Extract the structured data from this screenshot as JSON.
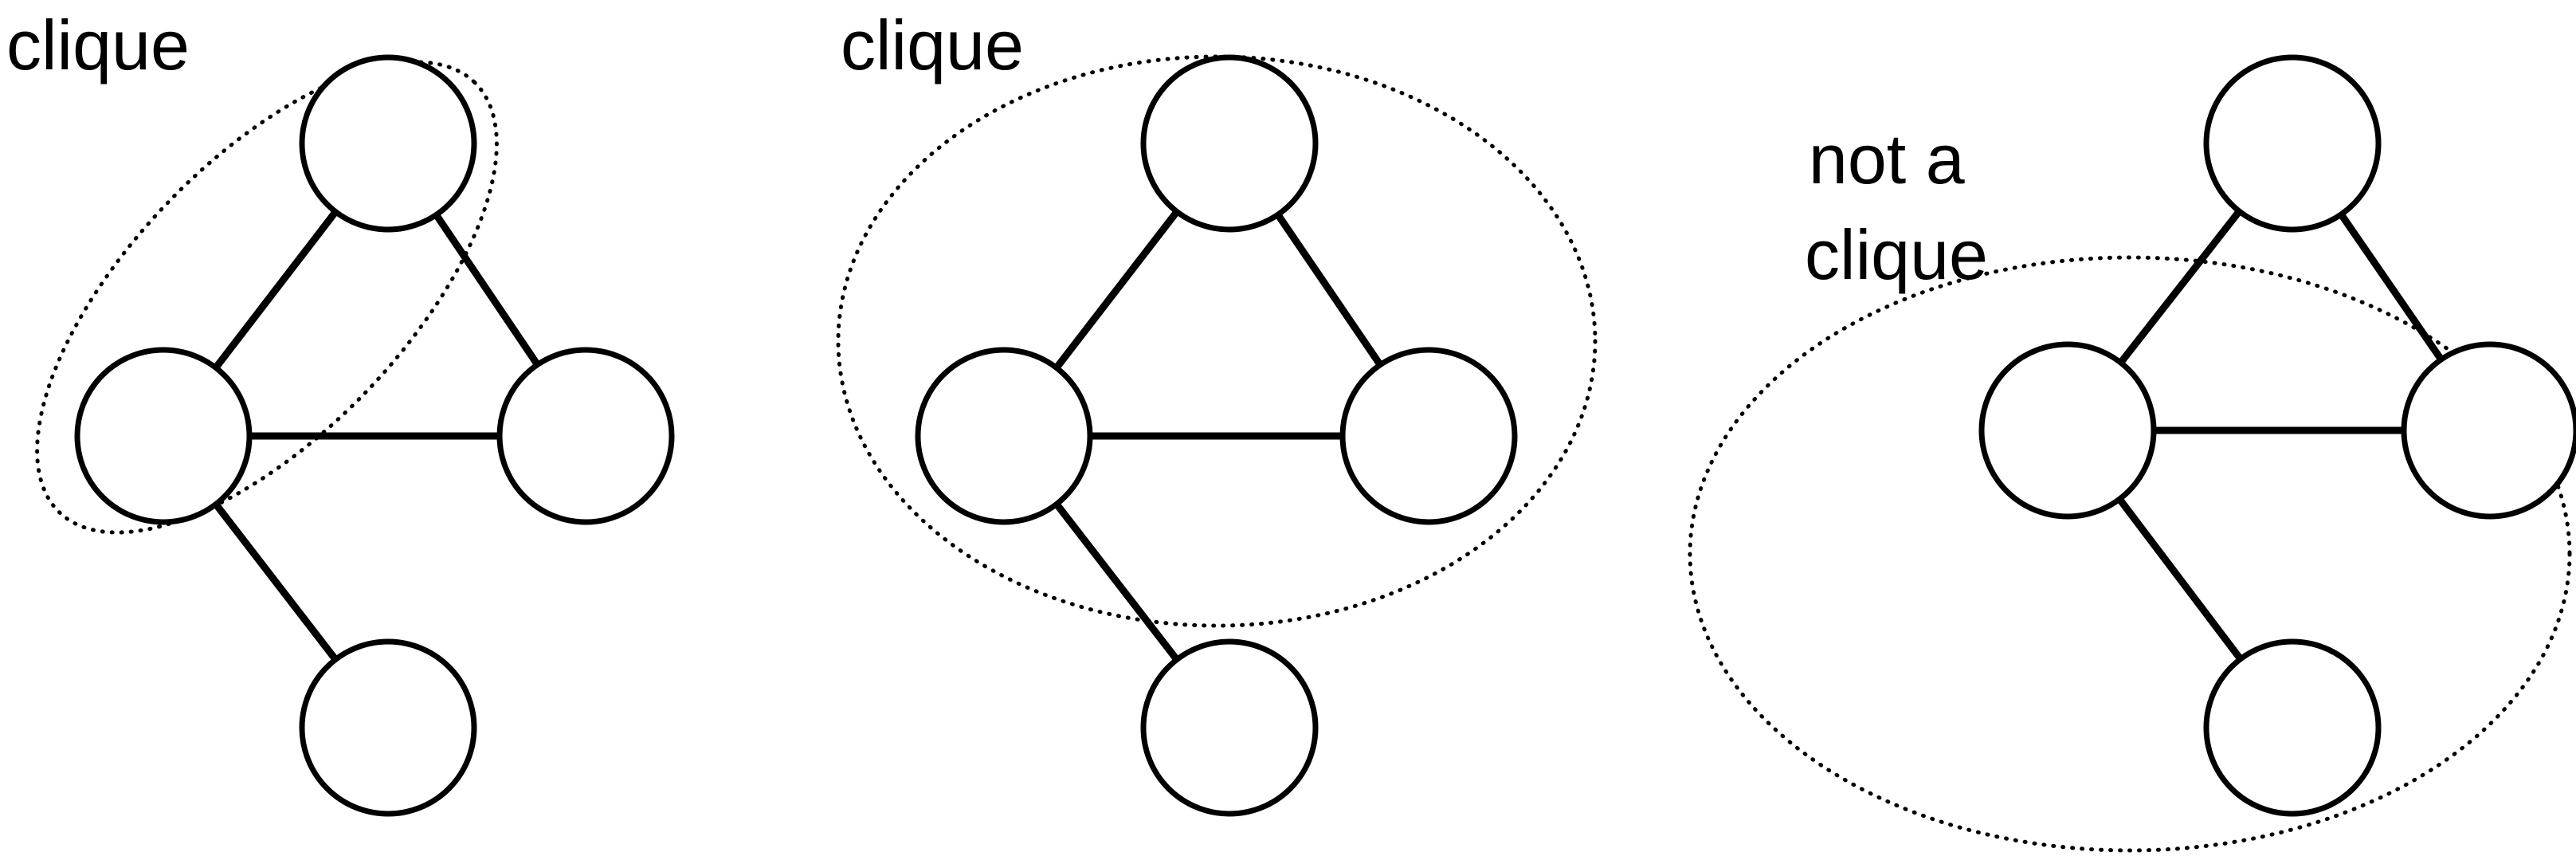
{
  "panels": [
    {
      "label_lines": [
        "clique"
      ],
      "hull": "two adjacent nodes",
      "nodes": 4,
      "edges": 4
    },
    {
      "label_lines": [
        "clique"
      ],
      "hull": "triangle of three nodes",
      "nodes": 4,
      "edges": 4
    },
    {
      "label_lines": [
        "not a",
        "clique"
      ],
      "hull": "three nodes that are not all connected",
      "nodes": 4,
      "edges": 4
    }
  ],
  "colors": {
    "stroke": "#000000",
    "background": "#ffffff"
  }
}
